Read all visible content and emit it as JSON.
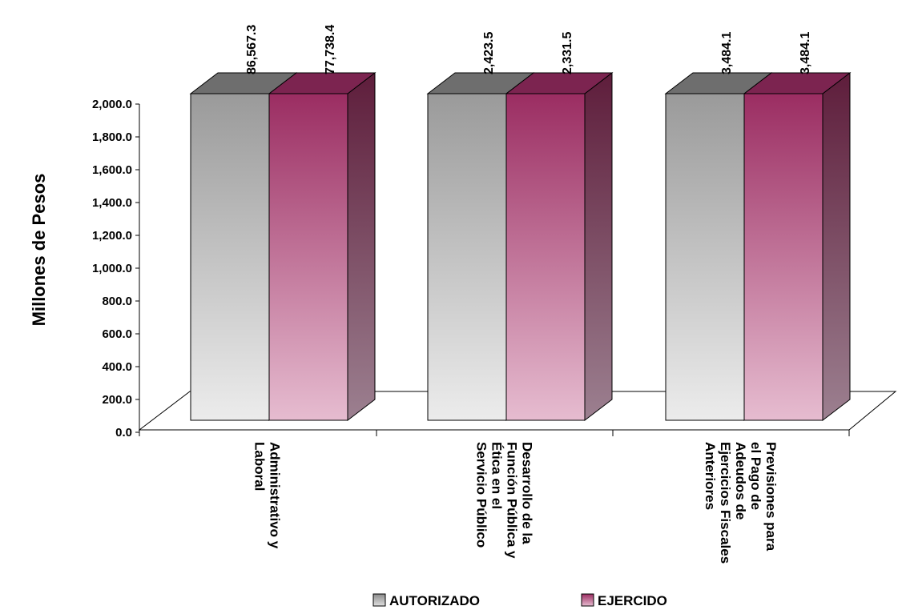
{
  "chart_data": {
    "type": "bar",
    "ylabel": "Millones de Pesos",
    "ylim": [
      0,
      2000
    ],
    "yticks": [
      "0.0",
      "200.0",
      "400.0",
      "600.0",
      "800.0",
      "1,000.0",
      "1,200.0",
      "1,400.0",
      "1,600.0",
      "1,800.0",
      "2,000.0"
    ],
    "categories": [
      [
        "Administrativo y",
        "Laboral"
      ],
      [
        "Desarrollo de la",
        "Función Pública y",
        "Ética en el",
        "Servicio Público"
      ],
      [
        "Previsiones para",
        "el Pago de",
        "Adeudos de",
        "Ejercicios Fiscales",
        "Anteriores"
      ]
    ],
    "series": [
      {
        "name": "AUTORIZADO",
        "values": [
          86567.3,
          2423.5,
          3484.1
        ],
        "labels": [
          "86,567.3",
          "2,423.5",
          "3,484.1"
        ],
        "color": "#9e9e9e"
      },
      {
        "name": "EJERCIDO",
        "values": [
          77738.4,
          2331.5,
          3484.1
        ],
        "labels": [
          "77,738.4",
          "2,331.5",
          "3,484.1"
        ],
        "color": "#9b2d62"
      }
    ],
    "legend": "bottom",
    "grid": false,
    "style": "3d-clustered-column"
  }
}
